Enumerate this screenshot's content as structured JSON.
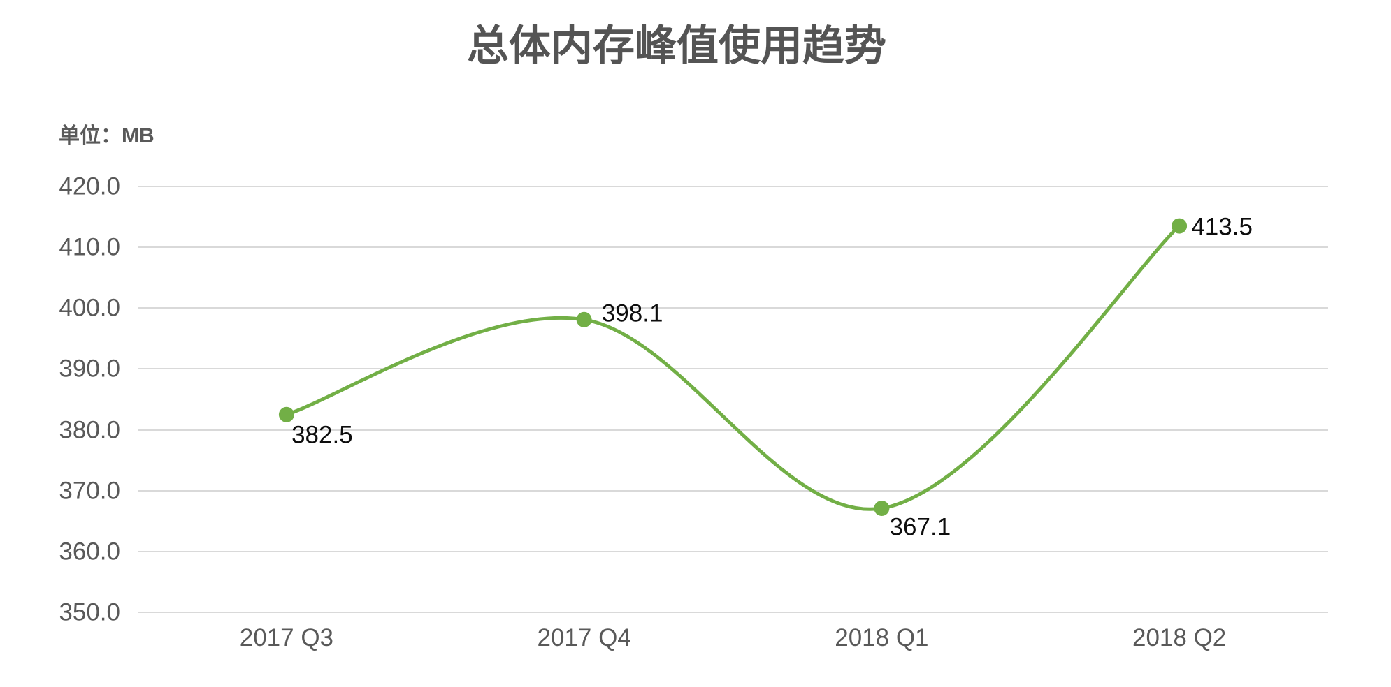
{
  "page": {
    "background": "#ffffff"
  },
  "chart_data": {
    "type": "line",
    "title": "总体内存峰值使用趋势",
    "unit_label": "单位：MB",
    "unit": "MB",
    "categories": [
      "2017 Q3",
      "2017 Q4",
      "2018 Q1",
      "2018 Q2"
    ],
    "values": [
      382.5,
      398.1,
      367.1,
      413.5
    ],
    "data_labels": [
      "382.5",
      "398.1",
      "367.1",
      "413.5"
    ],
    "ylim": [
      350,
      420
    ],
    "ytick_step": 10,
    "ytick_labels": [
      "420.0",
      "410.0",
      "400.0",
      "390.0",
      "380.0",
      "370.0",
      "360.0",
      "350.0"
    ],
    "xlabel": "",
    "ylabel": "",
    "grid": true,
    "smooth": true,
    "legend_position": "none",
    "colors": {
      "line": "#72af46",
      "marker": "#72af46",
      "grid": "#d9d9d9",
      "axis_text": "#595959",
      "title_text": "#545454",
      "data_label_text": "#0d0d0d"
    }
  }
}
